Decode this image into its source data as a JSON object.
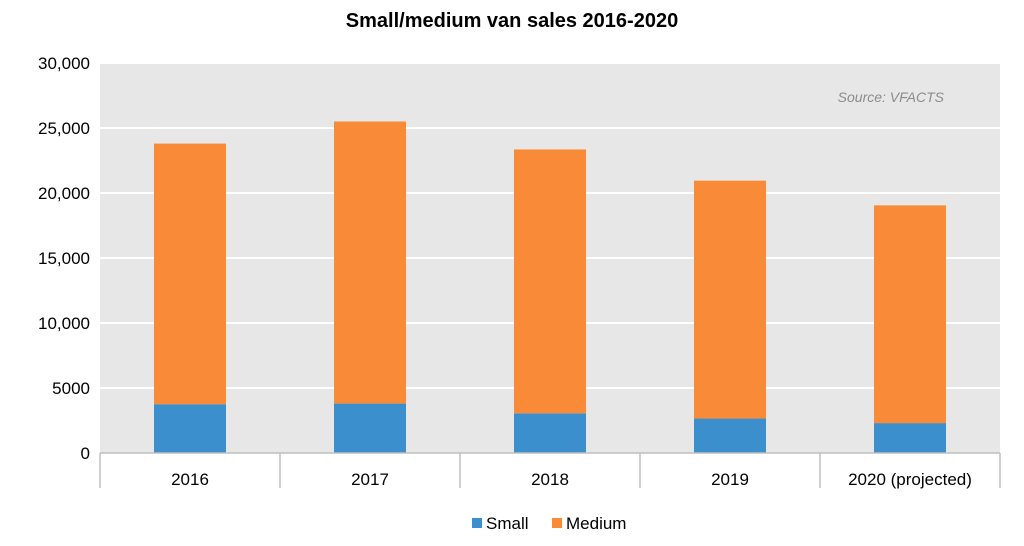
{
  "chart_data": {
    "type": "bar",
    "stacked": true,
    "title": "Small/medium van sales 2016-2020",
    "xlabel": "",
    "ylabel": "",
    "categories": [
      "2016",
      "2017",
      "2018",
      "2019",
      "2020 (projected)"
    ],
    "series": [
      {
        "name": "Small",
        "values": [
          3750,
          3800,
          3050,
          2650,
          2300
        ],
        "color": "#3b8fcd"
      },
      {
        "name": "Medium",
        "values": [
          20050,
          21700,
          20300,
          18300,
          16750
        ],
        "color": "#f98a38"
      }
    ],
    "ylim": [
      0,
      30000
    ],
    "yticks": [
      0,
      5000,
      10000,
      15000,
      20000,
      25000,
      30000
    ],
    "ytick_labels": [
      "0",
      "5000",
      "10,000",
      "15,000",
      "20,000",
      "25,000",
      "30,000"
    ],
    "grid": true,
    "legend_position": "bottom",
    "annotation": "Source: VFACTS",
    "plot_background": "#e7e7e7",
    "grid_color": "#ffffff"
  }
}
